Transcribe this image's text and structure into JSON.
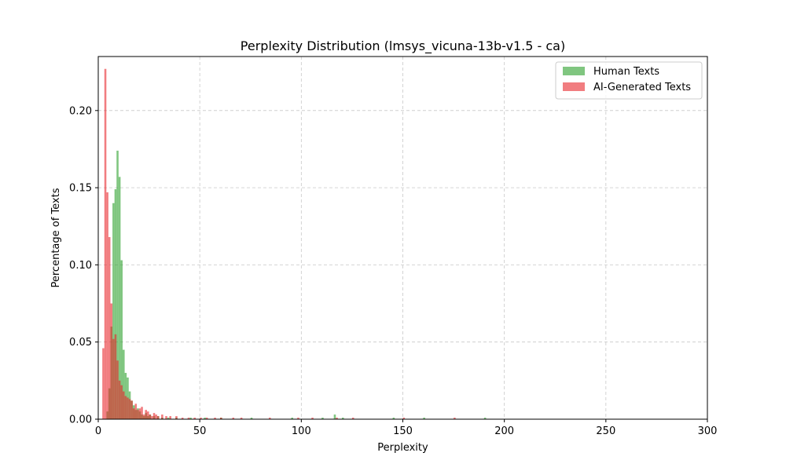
{
  "chart_data": {
    "type": "bar",
    "title": "Perplexity Distribution (lmsys_vicuna-13b-v1.5 - ca)",
    "xlabel": "Perplexity",
    "ylabel": "Percentage of Texts",
    "xlim": [
      0,
      300
    ],
    "ylim": [
      0,
      0.235
    ],
    "xticks": [
      0,
      50,
      100,
      150,
      200,
      250,
      300
    ],
    "yticks": [
      0.0,
      0.05,
      0.1,
      0.15,
      0.2
    ],
    "ytick_labels": [
      "0.00",
      "0.05",
      "0.10",
      "0.15",
      "0.20"
    ],
    "xtick_labels": [
      "0",
      "50",
      "100",
      "150",
      "200",
      "250",
      "300"
    ],
    "grid": true,
    "legend_position": "top-right",
    "series": [
      {
        "name": "Human Texts",
        "color": "#2ca02c",
        "opacity": 0.6,
        "bin_width": 1.0,
        "bins": [
          [
            4.5,
            0.005
          ],
          [
            5.5,
            0.02
          ],
          [
            6.5,
            0.06
          ],
          [
            7.5,
            0.14
          ],
          [
            8.5,
            0.149
          ],
          [
            9.5,
            0.174
          ],
          [
            10.5,
            0.157
          ],
          [
            11.5,
            0.103
          ],
          [
            12.5,
            0.045
          ],
          [
            13.5,
            0.03
          ],
          [
            14.5,
            0.027
          ],
          [
            15.5,
            0.018
          ],
          [
            16.5,
            0.012
          ],
          [
            17.5,
            0.009
          ],
          [
            18.5,
            0.006
          ],
          [
            19.5,
            0.007
          ],
          [
            20.5,
            0.005
          ],
          [
            21.5,
            0.003
          ],
          [
            22.5,
            0.002
          ],
          [
            23.5,
            0.004
          ],
          [
            24.5,
            0.002
          ],
          [
            25.5,
            0.003
          ],
          [
            27.5,
            0.002
          ],
          [
            29.5,
            0.002
          ],
          [
            31.5,
            0.001
          ],
          [
            34.5,
            0.001
          ],
          [
            38.5,
            0.001
          ],
          [
            45.5,
            0.001
          ],
          [
            52.5,
            0.001
          ],
          [
            60.5,
            0.001
          ],
          [
            75.5,
            0.001
          ],
          [
            95.5,
            0.001
          ],
          [
            110.5,
            0.001
          ],
          [
            116.5,
            0.003
          ],
          [
            120.5,
            0.001
          ],
          [
            145.5,
            0.001
          ],
          [
            160.5,
            0.001
          ],
          [
            190.5,
            0.001
          ]
        ]
      },
      {
        "name": "AI-Generated Texts",
        "color": "#e8262b",
        "opacity": 0.6,
        "bin_width": 1.0,
        "bins": [
          [
            2.5,
            0.046
          ],
          [
            3.5,
            0.227
          ],
          [
            4.5,
            0.147
          ],
          [
            5.5,
            0.118
          ],
          [
            6.5,
            0.075
          ],
          [
            7.5,
            0.052
          ],
          [
            8.5,
            0.055
          ],
          [
            9.5,
            0.038
          ],
          [
            10.5,
            0.025
          ],
          [
            11.5,
            0.022
          ],
          [
            12.5,
            0.018
          ],
          [
            13.5,
            0.015
          ],
          [
            14.5,
            0.014
          ],
          [
            15.5,
            0.013
          ],
          [
            16.5,
            0.012
          ],
          [
            17.5,
            0.007
          ],
          [
            18.5,
            0.01
          ],
          [
            19.5,
            0.006
          ],
          [
            20.5,
            0.007
          ],
          [
            21.5,
            0.008
          ],
          [
            22.5,
            0.003
          ],
          [
            23.5,
            0.006
          ],
          [
            24.5,
            0.005
          ],
          [
            25.5,
            0.003
          ],
          [
            26.5,
            0.002
          ],
          [
            27.5,
            0.004
          ],
          [
            28.5,
            0.003
          ],
          [
            29.5,
            0.002
          ],
          [
            31.5,
            0.003
          ],
          [
            33.5,
            0.002
          ],
          [
            35.5,
            0.002
          ],
          [
            38.5,
            0.002
          ],
          [
            41.5,
            0.001
          ],
          [
            44.5,
            0.001
          ],
          [
            47.5,
            0.001
          ],
          [
            50.5,
            0.001
          ],
          [
            53.5,
            0.001
          ],
          [
            57.5,
            0.001
          ],
          [
            60.5,
            0.001
          ],
          [
            66.5,
            0.001
          ],
          [
            70.5,
            0.001
          ],
          [
            84.5,
            0.001
          ],
          [
            98.5,
            0.001
          ],
          [
            105.5,
            0.001
          ],
          [
            117.5,
            0.001
          ],
          [
            125.5,
            0.001
          ],
          [
            150.5,
            0.001
          ],
          [
            175.5,
            0.001
          ]
        ]
      }
    ]
  }
}
